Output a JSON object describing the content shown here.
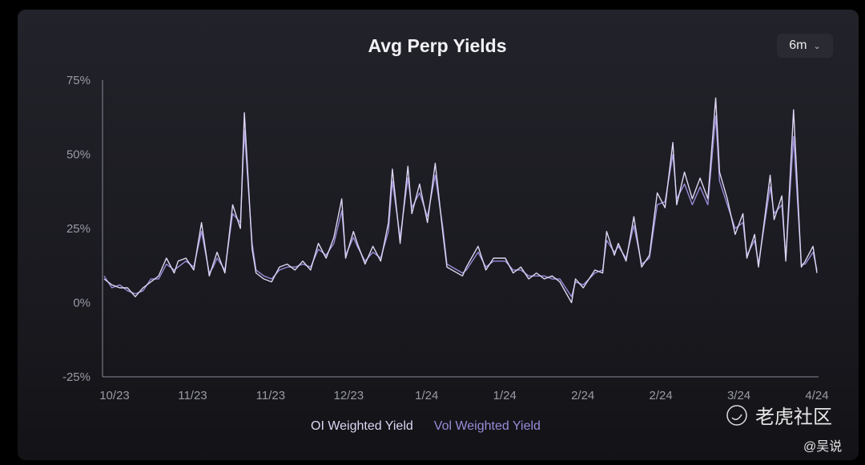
{
  "chart_data": {
    "type": "line",
    "title": "Avg Perp Yields",
    "range_selector": "6m",
    "y_ticks": [
      "75%",
      "50%",
      "25%",
      "0%",
      "-25%"
    ],
    "ylim": [
      -25,
      75
    ],
    "x_ticks": [
      "10/23",
      "11/23",
      "11/23",
      "12/23",
      "1/24",
      "1/24",
      "2/24",
      "2/24",
      "3/24",
      "4/24"
    ],
    "xlim": [
      "2023-10-02",
      "2024-04-02"
    ],
    "grid": false,
    "legend_placement": "bottom",
    "x": [
      "2023-10-02",
      "2023-10-04",
      "2023-10-06",
      "2023-10-08",
      "2023-10-10",
      "2023-10-12",
      "2023-10-14",
      "2023-10-16",
      "2023-10-18",
      "2023-10-20",
      "2023-10-21",
      "2023-10-23",
      "2023-10-25",
      "2023-10-27",
      "2023-10-29",
      "2023-10-30",
      "2023-10-31",
      "2023-11-02",
      "2023-11-04",
      "2023-11-06",
      "2023-11-07",
      "2023-11-09",
      "2023-11-10",
      "2023-11-12",
      "2023-11-14",
      "2023-11-16",
      "2023-11-18",
      "2023-11-20",
      "2023-11-22",
      "2023-11-24",
      "2023-11-26",
      "2023-11-28",
      "2023-11-30",
      "2023-12-02",
      "2023-12-03",
      "2023-12-05",
      "2023-12-06",
      "2023-12-08",
      "2023-12-10",
      "2023-12-12",
      "2023-12-14",
      "2023-12-15",
      "2023-12-17",
      "2023-12-19",
      "2023-12-20",
      "2023-12-22",
      "2023-12-24",
      "2023-12-26",
      "2023-12-28",
      "2023-12-29",
      "2024-01-02",
      "2024-01-03",
      "2024-01-06",
      "2024-01-08",
      "2024-01-10",
      "2024-01-13",
      "2024-01-15",
      "2024-01-17",
      "2024-01-19",
      "2024-01-21",
      "2024-01-23",
      "2024-01-25",
      "2024-01-27",
      "2024-01-30",
      "2024-01-31",
      "2024-02-02",
      "2024-02-05",
      "2024-02-07",
      "2024-02-08",
      "2024-02-10",
      "2024-02-11",
      "2024-02-13",
      "2024-02-15",
      "2024-02-17",
      "2024-02-19",
      "2024-02-21",
      "2024-02-23",
      "2024-02-25",
      "2024-02-26",
      "2024-02-28",
      "2024-03-01",
      "2024-03-03",
      "2024-03-05",
      "2024-03-07",
      "2024-03-08",
      "2024-03-10",
      "2024-03-12",
      "2024-03-14",
      "2024-03-15",
      "2024-03-17",
      "2024-03-18",
      "2024-03-21",
      "2024-03-22",
      "2024-03-24",
      "2024-03-25",
      "2024-03-27",
      "2024-03-29",
      "2024-03-30",
      "2024-04-01",
      "2024-04-02"
    ],
    "series": [
      {
        "name": "OI Weighted Yield",
        "color": "#ddd6f3",
        "values": [
          8,
          6,
          5,
          5,
          2,
          5,
          7,
          9,
          15,
          10,
          14,
          15,
          11,
          27,
          9,
          13,
          17,
          10,
          33,
          25,
          64,
          18,
          10,
          8,
          7,
          12,
          13,
          11,
          14,
          11,
          20,
          15,
          22,
          35,
          15,
          24,
          20,
          13,
          19,
          14,
          27,
          45,
          20,
          46,
          30,
          40,
          27,
          47,
          23,
          12,
          9,
          12,
          19,
          11,
          15,
          15,
          10,
          12,
          8,
          10,
          8,
          9,
          7,
          0,
          8,
          5,
          11,
          10,
          24,
          16,
          20,
          14,
          29,
          12,
          16,
          37,
          32,
          54,
          33,
          44,
          35,
          42,
          35,
          69,
          44,
          35,
          23,
          30,
          15,
          23,
          12,
          43,
          28,
          36,
          14,
          65,
          12,
          14,
          19,
          10
        ]
      },
      {
        "name": "Vol Weighted Yield",
        "color": "#9a8bd8",
        "values": [
          9,
          5,
          6,
          4,
          3,
          4,
          8,
          8,
          13,
          11,
          12,
          14,
          12,
          24,
          10,
          12,
          15,
          11,
          30,
          27,
          58,
          20,
          11,
          9,
          8,
          11,
          12,
          12,
          13,
          12,
          18,
          16,
          20,
          31,
          16,
          22,
          19,
          14,
          17,
          15,
          24,
          41,
          22,
          42,
          32,
          37,
          29,
          43,
          25,
          13,
          10,
          11,
          17,
          12,
          14,
          14,
          11,
          11,
          9,
          9,
          9,
          8,
          8,
          2,
          7,
          6,
          10,
          11,
          21,
          17,
          19,
          15,
          26,
          13,
          15,
          33,
          34,
          50,
          35,
          40,
          33,
          39,
          33,
          63,
          41,
          33,
          25,
          27,
          16,
          21,
          13,
          39,
          30,
          33,
          15,
          56,
          13,
          13,
          17,
          11
        ]
      }
    ]
  },
  "watermark": {
    "brand": "老虎社区",
    "user": "@吴说"
  }
}
